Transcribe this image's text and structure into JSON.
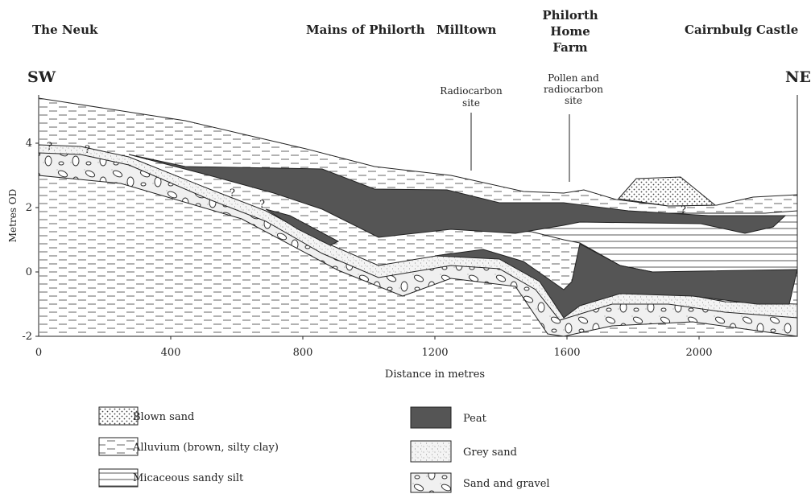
{
  "places": [
    {
      "lines": [
        "The Neuk"
      ]
    },
    {
      "lines": [
        "Mains of Philorth"
      ]
    },
    {
      "lines": [
        "Milltown"
      ]
    },
    {
      "lines": [
        "Philorth",
        "Home",
        "Farm"
      ]
    },
    {
      "lines": [
        "Cairnbulg Castle"
      ]
    }
  ],
  "directions": {
    "left": "SW",
    "right": "NE"
  },
  "sites": [
    {
      "lines": [
        "Radiocarbon",
        "site"
      ]
    },
    {
      "lines": [
        "Pollen and",
        "radiocarbon",
        "site"
      ]
    }
  ],
  "y_axis": {
    "title": "Metres OD",
    "ticks": [
      "4",
      "2",
      "0",
      "-2"
    ]
  },
  "x_axis": {
    "title": "Distance in metres",
    "ticks": [
      "0",
      "400",
      "800",
      "1200",
      "1600",
      "2000"
    ]
  },
  "question_marks": [
    "?",
    "?",
    "?",
    "?",
    "?"
  ],
  "legend": [
    "Blown sand",
    "Alluvium (brown, silty clay)",
    "Micaceous sandy silt",
    "Peat",
    "Grey sand",
    "Sand and gravel"
  ]
}
